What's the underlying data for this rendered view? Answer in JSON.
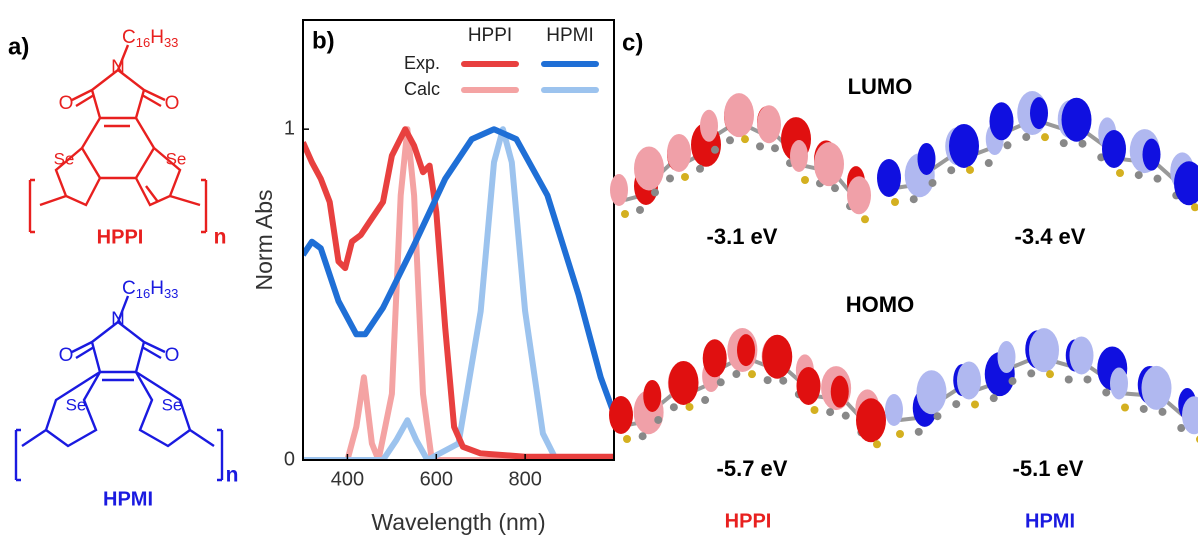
{
  "panel_a": {
    "label": "a)",
    "hppi": {
      "substituent": [
        "C",
        "16",
        "H",
        "33"
      ],
      "n_atom": "N",
      "o_atom": "O",
      "se_atom": "Se",
      "repeat": "n",
      "name": "HPPI"
    },
    "hpmi": {
      "substituent": [
        "C",
        "16",
        "H",
        "33"
      ],
      "n_atom": "N",
      "o_atom": "O",
      "se_atom": "Se",
      "repeat": "n",
      "name": "HPMI"
    }
  },
  "chart_data": {
    "type": "line",
    "panel_label": "b)",
    "x_label": "Wavelength (nm)",
    "y_label": "Norm Abs",
    "legend_columns": [
      "HPPI",
      "HPMI"
    ],
    "legend_rows": [
      "Exp.",
      "Calc"
    ],
    "xlim": [
      300,
      1000
    ],
    "ylim": [
      0,
      1.33
    ],
    "xticks": [
      400,
      600,
      800
    ],
    "yticks": [
      0,
      1
    ],
    "series": [
      {
        "color": "#e8403f",
        "x": [
          300,
          320,
          340,
          360,
          380,
          395,
          410,
          430,
          450,
          480,
          500,
          530,
          550,
          570,
          585,
          600,
          620,
          640,
          660,
          700,
          800,
          1000
        ],
        "values": [
          0.96,
          0.9,
          0.85,
          0.78,
          0.6,
          0.58,
          0.66,
          0.68,
          0.72,
          0.78,
          0.92,
          1.0,
          0.95,
          0.87,
          0.89,
          0.75,
          0.4,
          0.1,
          0.04,
          0.02,
          0.01,
          0.01
        ]
      },
      {
        "color": "#1f6fd6",
        "x": [
          300,
          320,
          340,
          380,
          420,
          440,
          480,
          550,
          620,
          680,
          730,
          780,
          850,
          920,
          970,
          1000
        ],
        "values": [
          0.62,
          0.66,
          0.64,
          0.48,
          0.38,
          0.38,
          0.46,
          0.65,
          0.85,
          0.97,
          1.0,
          0.97,
          0.8,
          0.5,
          0.25,
          0.14
        ]
      },
      {
        "color": "#f4a3a3",
        "x": [
          300,
          400,
          420,
          437,
          455,
          470,
          500,
          520,
          535,
          550,
          570,
          590,
          1000
        ],
        "values": [
          0,
          0,
          0.1,
          0.25,
          0.05,
          0,
          0.2,
          0.8,
          1.0,
          0.8,
          0.2,
          0,
          0
        ]
      },
      {
        "color": "#9cc3ee",
        "x": [
          300,
          480,
          510,
          535,
          555,
          580,
          650,
          700,
          730,
          750,
          770,
          800,
          840,
          870,
          1000
        ],
        "values": [
          0,
          0,
          0.06,
          0.12,
          0.06,
          0,
          0.05,
          0.45,
          0.9,
          1.0,
          0.9,
          0.45,
          0.08,
          0,
          0
        ]
      }
    ]
  },
  "panel_c": {
    "label": "c)",
    "lumo": "LUMO",
    "homo": "HOMO",
    "energies": [
      "-3.1 eV",
      "-3.4 eV",
      "-5.7 eV",
      "-5.1 eV"
    ],
    "names": [
      "HPPI",
      "HPMI"
    ]
  }
}
